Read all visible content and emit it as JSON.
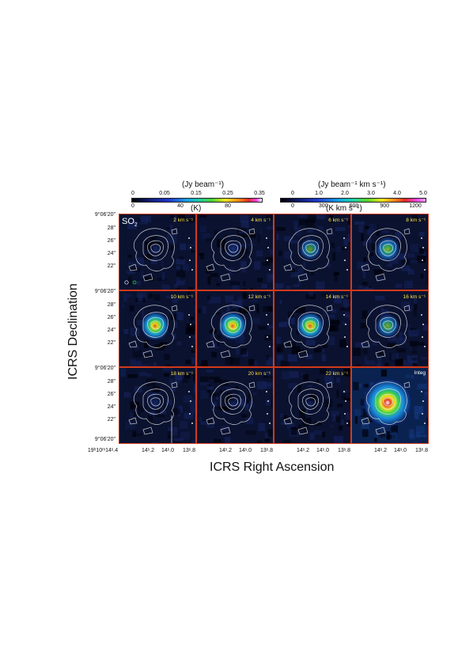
{
  "colorbar_left": {
    "title": "(Jy beam⁻¹)",
    "top_ticks": [
      "0",
      "0.05",
      "0.15",
      "0.25",
      "0.35"
    ],
    "bottom_ticks": [
      "0",
      "40",
      "80"
    ],
    "unit_label": "(K)"
  },
  "colorbar_right": {
    "title": "(Jy beam⁻¹ km s⁻¹)",
    "top_ticks": [
      "0",
      "1.0",
      "2.0",
      "3.0",
      "4.0",
      "5.0"
    ],
    "bottom_ticks": [
      "0",
      "300",
      "600",
      "900",
      "1200"
    ],
    "unit_label": "(K km s⁻¹)"
  },
  "species": {
    "name": "SO",
    "sub": "2"
  },
  "panels": [
    {
      "label": "2 km s⁻¹",
      "intensity": 0.1
    },
    {
      "label": "4 km s⁻¹",
      "intensity": 0.35
    },
    {
      "label": "6 km s⁻¹",
      "intensity": 0.6
    },
    {
      "label": "8 km s⁻¹",
      "intensity": 0.75
    },
    {
      "label": "10 km s⁻¹",
      "intensity": 0.95
    },
    {
      "label": "12 km s⁻¹",
      "intensity": 0.95
    },
    {
      "label": "14 km s⁻¹",
      "intensity": 0.9
    },
    {
      "label": "16 km s⁻¹",
      "intensity": 0.7
    },
    {
      "label": "18 km s⁻¹",
      "intensity": 0.2
    },
    {
      "label": "20 km s⁻¹",
      "intensity": 0.05
    },
    {
      "label": "22 km s⁻¹",
      "intensity": 0.04
    },
    {
      "label": "Integ",
      "intensity": 1.0
    }
  ],
  "y_ticks": [
    "9°06'20\"",
    "28\"",
    "26\"",
    "24\"",
    "22\"",
    "9°06'20\"",
    "28\"",
    "26\"",
    "24\"",
    "22\"",
    "9°06'20\"",
    "28\"",
    "26\"",
    "24\"",
    "22\"",
    "9°06'20\""
  ],
  "x_ticks": [
    "19ʰ10ᵐ14ˢ.4",
    "14ˢ.2",
    "14ˢ.0",
    "13ˢ.8",
    "14ˢ.2",
    "14ˢ.0",
    "13ˢ.8",
    "14ˢ.2",
    "14ˢ.0",
    "13ˢ.8",
    "14ˢ.2",
    "14ˢ.0",
    "13ˢ.8"
  ],
  "axes": {
    "xlabel": "ICRS Right Ascension",
    "ylabel": "ICRS Declination"
  },
  "colors": {
    "panel_border": "#d23a1a",
    "label_yellow": "#ffe24a"
  }
}
